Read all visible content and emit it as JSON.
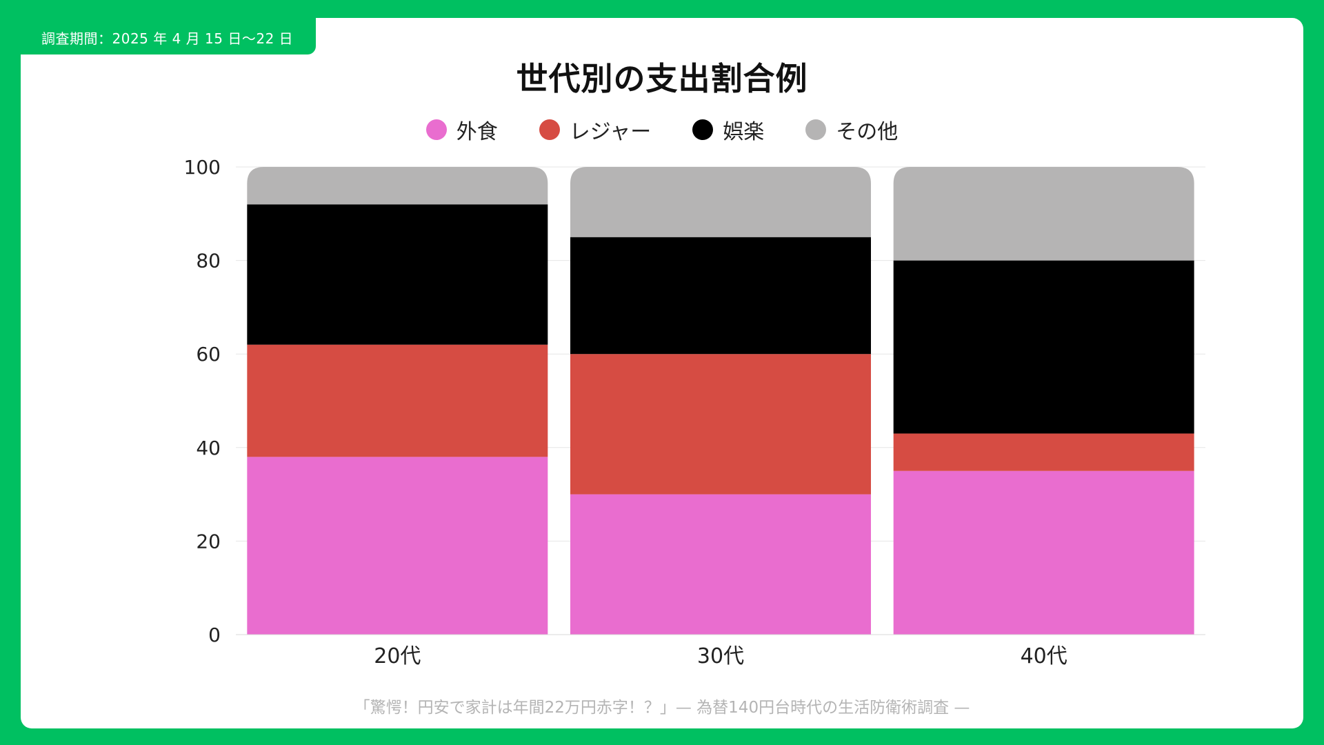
{
  "header": {
    "survey_period": "調査期間：2025 年 4 月 15 日〜22 日"
  },
  "footer": {
    "source": "「驚愕！円安で家計は年間22万円赤字！？」— 為替140円台時代の生活防衛術調査 —"
  },
  "colors": {
    "frame": "#00C061",
    "gridline": "#e6e6e6"
  },
  "chart_data": {
    "type": "bar",
    "stacked": true,
    "title": "世代別の支出割合例",
    "xlabel": "",
    "ylabel": "",
    "categories": [
      "20代",
      "30代",
      "40代"
    ],
    "series": [
      {
        "name": "外食",
        "color": "#E96DCF",
        "values": [
          38,
          30,
          35
        ]
      },
      {
        "name": "レジャー",
        "color": "#D64C43",
        "values": [
          24,
          30,
          8
        ]
      },
      {
        "name": "娯楽",
        "color": "#000000",
        "values": [
          30,
          25,
          37
        ]
      },
      {
        "name": "その他",
        "color": "#B5B4B4",
        "values": [
          8,
          15,
          20
        ]
      }
    ],
    "ylim": [
      0,
      100
    ],
    "yticks": [
      0,
      20,
      40,
      60,
      80,
      100
    ],
    "grid": true,
    "legend_position": "top-center"
  }
}
